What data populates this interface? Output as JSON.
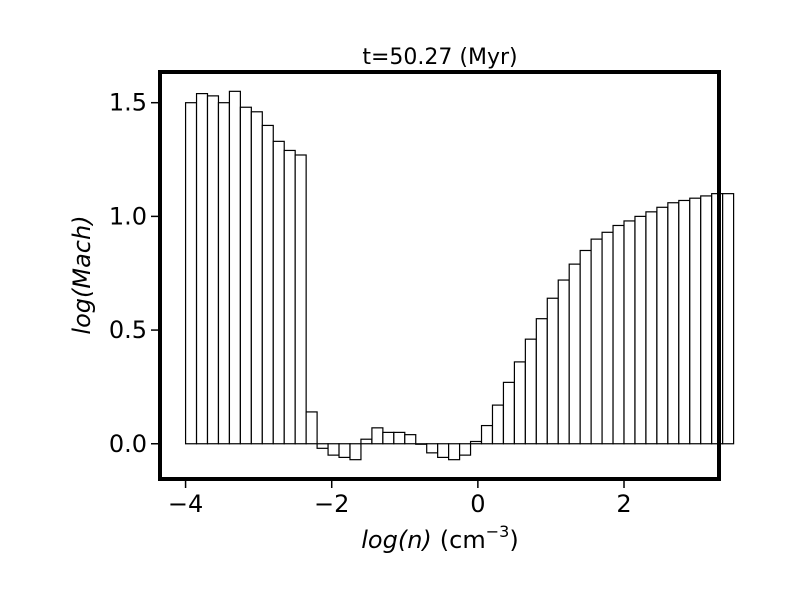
{
  "chart_data": {
    "type": "bar",
    "title": "t=50.27 (Myr)",
    "xlabel": {
      "var": "log(n)",
      "unit": "cm",
      "exp": "−3"
    },
    "ylabel": "log(Mach)",
    "xlim": [
      -4.35,
      3.3
    ],
    "ylim": [
      -0.155,
      1.635
    ],
    "bin_start": -4.0,
    "bin_width": 0.15,
    "xticks": [
      {
        "value": -4,
        "label": "−4"
      },
      {
        "value": -2,
        "label": "−2"
      },
      {
        "value": 0,
        "label": "0"
      },
      {
        "value": 2,
        "label": "2"
      }
    ],
    "yticks": [
      {
        "value": 0.0,
        "label": "0.0"
      },
      {
        "value": 0.5,
        "label": "0.5"
      },
      {
        "value": 1.0,
        "label": "1.0"
      },
      {
        "value": 1.5,
        "label": "1.5"
      }
    ],
    "grid": false,
    "values": [
      1.5,
      1.54,
      1.53,
      1.5,
      1.55,
      1.48,
      1.46,
      1.4,
      1.33,
      1.29,
      1.27,
      0.14,
      -0.02,
      -0.05,
      -0.06,
      -0.07,
      0.02,
      0.07,
      0.05,
      0.05,
      0.04,
      0.0,
      -0.04,
      -0.06,
      -0.07,
      -0.05,
      0.01,
      0.08,
      0.17,
      0.27,
      0.36,
      0.46,
      0.55,
      0.64,
      0.72,
      0.79,
      0.85,
      0.9,
      0.93,
      0.96,
      0.98,
      1.0,
      1.02,
      1.04,
      1.06,
      1.07,
      1.08,
      1.09,
      1.1,
      1.1
    ]
  }
}
